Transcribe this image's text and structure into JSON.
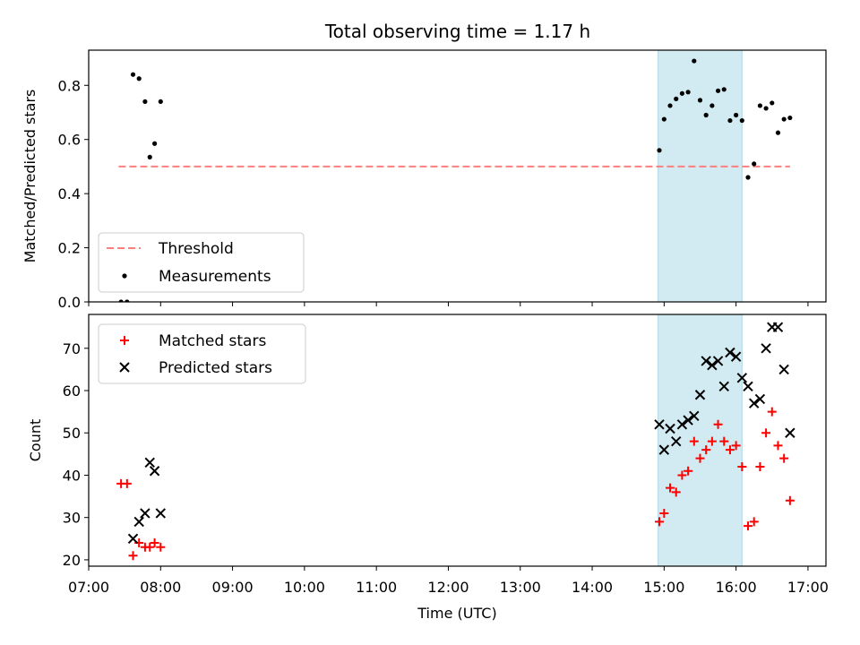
{
  "chart_data": [
    {
      "type": "scatter",
      "title": "Total observing time = 1.17 h",
      "xlabel": "",
      "ylabel": "Matched/Predicted stars",
      "xlim": [
        "07:00",
        "17:15"
      ],
      "ylim": [
        0,
        0.93
      ],
      "yticks": [
        0.0,
        0.2,
        0.4,
        0.6,
        0.8
      ],
      "ytick_labels": [
        "0.0",
        "0.2",
        "0.4",
        "0.6",
        "0.8"
      ],
      "shaded_region": {
        "x": [
          "14:55",
          "16:05"
        ],
        "color": "#add8e6"
      },
      "threshold": {
        "name": "Threshold",
        "y": 0.5,
        "x": [
          "07:25",
          "16:45"
        ],
        "color": "#ff7f7f",
        "style": "dashed"
      },
      "series": [
        {
          "name": "Measurements",
          "marker": "dot",
          "color": "#000000",
          "points": [
            [
              "07:27",
              0.0
            ],
            [
              "07:32",
              0.0
            ],
            [
              "07:37",
              0.84
            ],
            [
              "07:42",
              0.825
            ],
            [
              "07:47",
              0.74
            ],
            [
              "07:51",
              0.535
            ],
            [
              "07:55",
              0.585
            ],
            [
              "08:00",
              0.74
            ],
            [
              "14:56",
              0.56
            ],
            [
              "15:00",
              0.675
            ],
            [
              "15:05",
              0.725
            ],
            [
              "15:10",
              0.75
            ],
            [
              "15:15",
              0.77
            ],
            [
              "15:20",
              0.775
            ],
            [
              "15:25",
              0.89
            ],
            [
              "15:30",
              0.745
            ],
            [
              "15:35",
              0.69
            ],
            [
              "15:40",
              0.725
            ],
            [
              "15:45",
              0.78
            ],
            [
              "15:50",
              0.785
            ],
            [
              "15:55",
              0.67
            ],
            [
              "16:00",
              0.69
            ],
            [
              "16:05",
              0.67
            ],
            [
              "16:10",
              0.46
            ],
            [
              "16:15",
              0.51
            ],
            [
              "16:20",
              0.725
            ],
            [
              "16:25",
              0.715
            ],
            [
              "16:30",
              0.735
            ],
            [
              "16:35",
              0.625
            ],
            [
              "16:40",
              0.675
            ],
            [
              "16:45",
              0.68
            ]
          ]
        }
      ],
      "legend": {
        "location": "lower-left",
        "entries": [
          "Threshold",
          "Measurements"
        ]
      }
    },
    {
      "type": "scatter",
      "title": "",
      "xlabel": "Time (UTC)",
      "ylabel": "Count",
      "xlim": [
        "07:00",
        "17:15"
      ],
      "xticks": [
        "07:00",
        "08:00",
        "09:00",
        "10:00",
        "11:00",
        "12:00",
        "13:00",
        "14:00",
        "15:00",
        "16:00",
        "17:00"
      ],
      "ylim": [
        18.5,
        78
      ],
      "yticks": [
        20,
        30,
        40,
        50,
        60,
        70
      ],
      "shaded_region": {
        "x": [
          "14:55",
          "16:05"
        ],
        "color": "#add8e6"
      },
      "series": [
        {
          "name": "Matched stars",
          "marker": "plus",
          "color": "#ff0000",
          "points": [
            [
              "07:27",
              38
            ],
            [
              "07:32",
              38
            ],
            [
              "07:37",
              21
            ],
            [
              "07:42",
              24
            ],
            [
              "07:47",
              23
            ],
            [
              "07:51",
              23
            ],
            [
              "07:55",
              24
            ],
            [
              "08:00",
              23
            ],
            [
              "14:56",
              29
            ],
            [
              "15:00",
              31
            ],
            [
              "15:05",
              37
            ],
            [
              "15:10",
              36
            ],
            [
              "15:15",
              40
            ],
            [
              "15:20",
              41
            ],
            [
              "15:25",
              48
            ],
            [
              "15:30",
              44
            ],
            [
              "15:35",
              46
            ],
            [
              "15:40",
              48
            ],
            [
              "15:45",
              52
            ],
            [
              "15:50",
              48
            ],
            [
              "15:55",
              46
            ],
            [
              "16:00",
              47
            ],
            [
              "16:05",
              42
            ],
            [
              "16:10",
              28
            ],
            [
              "16:15",
              29
            ],
            [
              "16:20",
              42
            ],
            [
              "16:25",
              50
            ],
            [
              "16:30",
              55
            ],
            [
              "16:35",
              47
            ],
            [
              "16:40",
              44
            ],
            [
              "16:45",
              34
            ]
          ]
        },
        {
          "name": "Predicted stars",
          "marker": "x",
          "color": "#000000",
          "points": [
            [
              "07:37",
              25
            ],
            [
              "07:42",
              29
            ],
            [
              "07:47",
              31
            ],
            [
              "07:51",
              43
            ],
            [
              "07:55",
              41
            ],
            [
              "08:00",
              31
            ],
            [
              "14:56",
              52
            ],
            [
              "15:00",
              46
            ],
            [
              "15:05",
              51
            ],
            [
              "15:10",
              48
            ],
            [
              "15:15",
              52
            ],
            [
              "15:20",
              53
            ],
            [
              "15:25",
              54
            ],
            [
              "15:30",
              59
            ],
            [
              "15:35",
              67
            ],
            [
              "15:40",
              66
            ],
            [
              "15:45",
              67
            ],
            [
              "15:50",
              61
            ],
            [
              "15:55",
              69
            ],
            [
              "16:00",
              68
            ],
            [
              "16:05",
              63
            ],
            [
              "16:10",
              61
            ],
            [
              "16:15",
              57
            ],
            [
              "16:20",
              58
            ],
            [
              "16:25",
              70
            ],
            [
              "16:30",
              75
            ],
            [
              "16:35",
              75
            ],
            [
              "16:40",
              65
            ],
            [
              "16:45",
              50
            ]
          ]
        }
      ],
      "legend": {
        "location": "upper-left",
        "entries": [
          "Matched stars",
          "Predicted stars"
        ]
      }
    }
  ]
}
